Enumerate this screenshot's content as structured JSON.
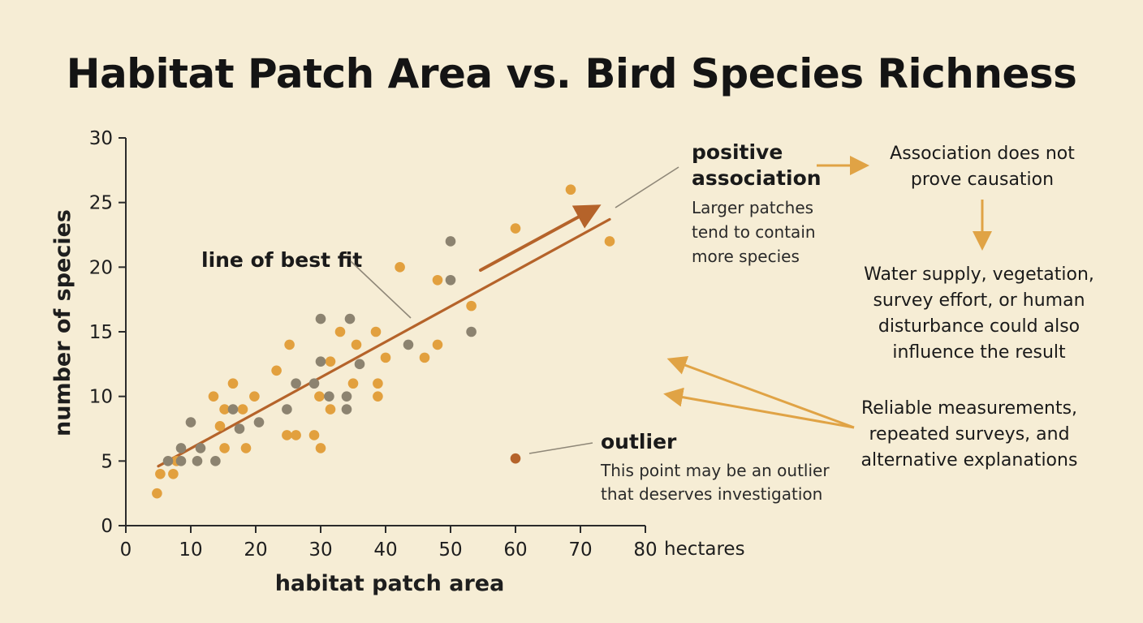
{
  "colors": {
    "background": "#f6edd5",
    "point_orange": "#e2a03e",
    "point_gray": "#8c8370",
    "fit_line": "#b5632a",
    "outlier": "#b5632a",
    "annotation_arrow": "#e0a345",
    "leader_line": "#8f8778"
  },
  "chart_data": {
    "type": "scatter",
    "title": "Habitat Patch Area vs. Bird Species Richness",
    "xlabel": "habitat patch area",
    "ylabel": "number of species",
    "x_unit": "hectares",
    "xlim": [
      0,
      80
    ],
    "ylim": [
      0,
      30
    ],
    "x_ticks": [
      0,
      10,
      20,
      30,
      40,
      50,
      60,
      70,
      80
    ],
    "y_ticks": [
      0,
      5,
      10,
      15,
      20,
      25,
      30
    ],
    "grid": false,
    "series": [
      {
        "points": [
          [
            4.8,
            2.5
          ],
          [
            5.3,
            4
          ],
          [
            7.3,
            4
          ],
          [
            7.8,
            5
          ],
          [
            13.5,
            10
          ],
          [
            14.5,
            7.7
          ],
          [
            15.2,
            9
          ],
          [
            15.2,
            6
          ],
          [
            16.5,
            11
          ],
          [
            18,
            9
          ],
          [
            18.5,
            6
          ],
          [
            19.8,
            10
          ],
          [
            23.2,
            12
          ],
          [
            24.8,
            7
          ],
          [
            25.2,
            14
          ],
          [
            26.2,
            7
          ],
          [
            29,
            7
          ],
          [
            29.8,
            10
          ],
          [
            30,
            6
          ],
          [
            31.5,
            12.7
          ],
          [
            31.5,
            9
          ],
          [
            33,
            15
          ],
          [
            35,
            11
          ],
          [
            35.5,
            14
          ],
          [
            38.5,
            15
          ],
          [
            38.8,
            11
          ],
          [
            38.8,
            10
          ],
          [
            40,
            13
          ],
          [
            42.2,
            20
          ],
          [
            46,
            13
          ],
          [
            48,
            19
          ],
          [
            48,
            14
          ],
          [
            53.2,
            17
          ],
          [
            60,
            23
          ],
          [
            68.5,
            26
          ],
          [
            74.5,
            22
          ]
        ]
      },
      {
        "points": [
          [
            6.5,
            5
          ],
          [
            8.5,
            6
          ],
          [
            8.5,
            5
          ],
          [
            10,
            8
          ],
          [
            11,
            5
          ],
          [
            11.5,
            6
          ],
          [
            13.8,
            5
          ],
          [
            16.5,
            9
          ],
          [
            17.5,
            7.5
          ],
          [
            20.5,
            8
          ],
          [
            24.8,
            9
          ],
          [
            26.2,
            11
          ],
          [
            29,
            11
          ],
          [
            30,
            16
          ],
          [
            30,
            12.7
          ],
          [
            31.3,
            10
          ],
          [
            34,
            10
          ],
          [
            34,
            9
          ],
          [
            34.5,
            16
          ],
          [
            36,
            12.5
          ],
          [
            43.5,
            14
          ],
          [
            50,
            22
          ],
          [
            50,
            19
          ],
          [
            53.2,
            15
          ]
        ]
      }
    ],
    "outlier": [
      60,
      5.2
    ],
    "best_fit": {
      "x": [
        5,
        74.5
      ],
      "y": [
        4.6,
        23.7
      ]
    }
  },
  "annotations": {
    "best_fit_label": "line of best fit",
    "positive_head_1": "positive",
    "positive_head_2": "association",
    "positive_body_1": "Larger patches",
    "positive_body_2": "tend to contain",
    "positive_body_3": "more species",
    "outlier_head": "outlier",
    "outlier_body_1": "This point may be an outlier",
    "outlier_body_2": "that deserves investigation",
    "causation_1": "Association does not",
    "causation_2": "prove causation",
    "confounders_1": "Water supply, vegetation,",
    "confounders_2": "survey effort, or human",
    "confounders_3": "disturbance could also",
    "confounders_4": "influence the result",
    "reliable_1": "Reliable measurements,",
    "reliable_2": "repeated surveys, and",
    "reliable_3": "alternative explanations"
  }
}
